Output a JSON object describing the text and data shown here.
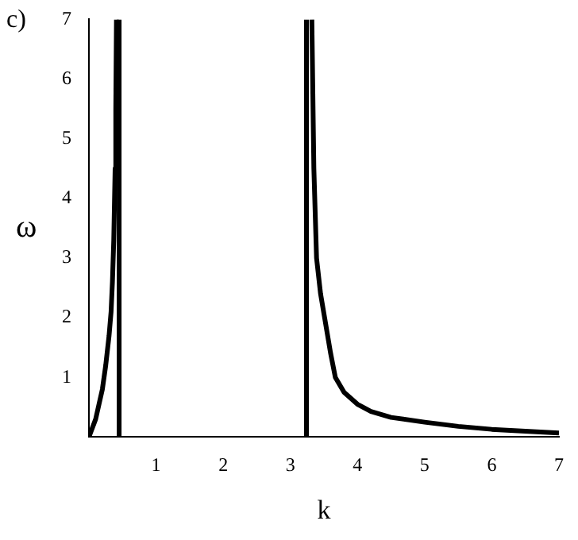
{
  "chart_data": {
    "type": "line",
    "xlabel": "k",
    "ylabel": "ω",
    "annotations": [
      "c)"
    ],
    "xlim": [
      0,
      7
    ],
    "ylim": [
      0,
      7
    ],
    "xticks": [
      1,
      2,
      3,
      4,
      5,
      6,
      7
    ],
    "yticks": [
      1,
      2,
      3,
      4,
      5,
      6,
      7
    ],
    "grid": false,
    "legend": false,
    "marker": "none",
    "line_style": "solid",
    "series": [
      {
        "color": "#000000",
        "x": [
          0,
          0.1,
          0.2,
          0.25,
          0.3,
          0.33,
          0.35,
          0.37,
          0.39,
          0.4,
          0.41
        ],
        "values": [
          0,
          0.3,
          0.8,
          1.2,
          1.7,
          2.1,
          2.6,
          3.3,
          4.5,
          5.5,
          7
        ]
      },
      {
        "color": "#000000",
        "x": [
          0.45,
          0.45
        ],
        "values": [
          0,
          7
        ]
      },
      {
        "color": "#000000",
        "x": [
          3.24,
          3.24
        ],
        "values": [
          0,
          7
        ]
      },
      {
        "color": "#000000",
        "x": [
          3.32,
          3.35,
          3.39,
          3.45,
          3.51,
          3.6,
          3.67,
          3.8,
          4,
          4.2,
          4.5,
          5,
          5.5,
          6,
          6.5,
          7
        ],
        "values": [
          7,
          4.5,
          3,
          2.4,
          2,
          1.4,
          1,
          0.75,
          0.55,
          0.43,
          0.33,
          0.25,
          0.18,
          0.13,
          0.1,
          0.07
        ]
      }
    ]
  }
}
